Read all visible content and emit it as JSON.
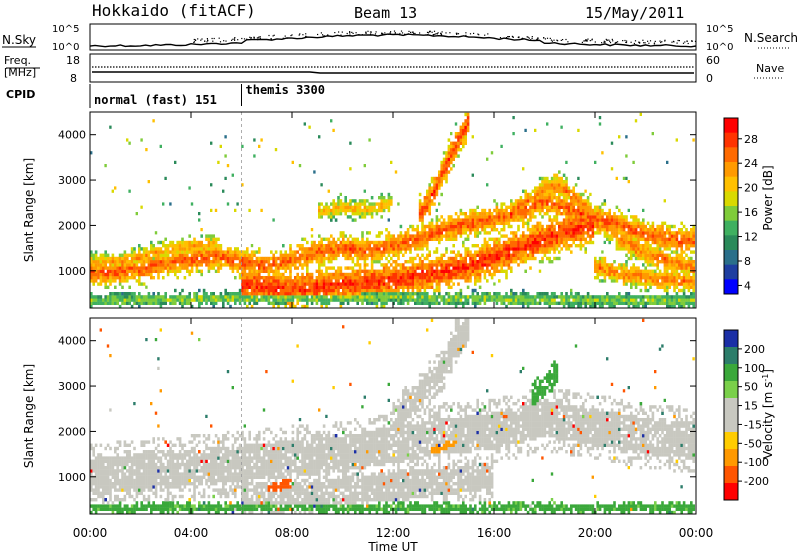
{
  "header": {
    "station": "Hokkaido (fitACF)",
    "beam": "Beam 13",
    "date": "15/May/2011"
  },
  "top_panels": {
    "nsky_label": "N.Sky",
    "nsearch_label": "N.Search",
    "nsky_ticks": [
      "10^5",
      "10^0"
    ],
    "nsearch_ticks": [
      "10^5",
      "10^0"
    ],
    "freq_label_1": "Freq.",
    "freq_label_2": "[MHz]",
    "freq_ticks": [
      "18",
      "8"
    ],
    "nave_label": "Nave",
    "nave_ticks": [
      "60",
      "0"
    ],
    "cpid_label": "CPID",
    "cpid_modes": [
      {
        "name": "normal (fast) 151",
        "start_hour": 0
      },
      {
        "name": "themis 3300",
        "start_hour": 6
      }
    ]
  },
  "power_scale": {
    "label": "Power [dB]",
    "ticks": [
      "28",
      "24",
      "20",
      "16",
      "12",
      "8",
      "4"
    ],
    "colors": [
      "#ff0000",
      "#ff3300",
      "#ff6a00",
      "#ff9a00",
      "#ffc000",
      "#d9d900",
      "#7fcc3a",
      "#3fb060",
      "#2a8a5a",
      "#2a6f8a",
      "#1e3ea0",
      "#0000ff"
    ]
  },
  "velocity_scale": {
    "label_main": "Velocity [m s",
    "label_sup": "-1",
    "label_end": "]",
    "ticks": [
      "200",
      "100",
      "50",
      "15",
      "-15",
      "-50",
      "-100",
      "-200"
    ],
    "colors": [
      "#1b2fa6",
      "#2c7d6a",
      "#3aa83a",
      "#7ad04a",
      "#c8c8c0",
      "#c8c8c0",
      "#ffcc00",
      "#ff9900",
      "#ff5500",
      "#ff0000"
    ]
  },
  "chart_data": {
    "type": "heatmap",
    "xlabel": "Time UT",
    "ylabel": "Slant Range [km]",
    "x_ticks": [
      "00:00",
      "04:00",
      "08:00",
      "12:00",
      "16:00",
      "20:00",
      "00:00"
    ],
    "y_ticks": [
      "1000",
      "2000",
      "3000",
      "4000"
    ],
    "xlim": [
      0,
      24
    ],
    "ylim": [
      180,
      4500
    ],
    "power_range_db": [
      0,
      30
    ],
    "velocity_range": [
      -250,
      250
    ],
    "power_bands": [
      {
        "points": [
          [
            0,
            950
          ],
          [
            1,
            980
          ],
          [
            2,
            1050
          ],
          [
            3,
            1150
          ],
          [
            4,
            1250
          ],
          [
            5,
            1320
          ],
          [
            6,
            1200
          ],
          [
            7,
            1100
          ],
          [
            8,
            1250
          ],
          [
            9,
            1400
          ],
          [
            10,
            1500
          ],
          [
            11,
            1450
          ],
          [
            12,
            1550
          ],
          [
            13,
            1700
          ],
          [
            14,
            1900
          ],
          [
            15,
            2050
          ],
          [
            16,
            2150
          ],
          [
            17,
            2300
          ],
          [
            18,
            2550
          ],
          [
            19,
            2350
          ],
          [
            20,
            2150
          ],
          [
            21,
            2000
          ],
          [
            22,
            1800
          ],
          [
            23,
            1700
          ],
          [
            24,
            1650
          ]
        ],
        "width": 180,
        "db": 26
      },
      {
        "points": [
          [
            0,
            1150
          ],
          [
            1,
            1200
          ],
          [
            2,
            1300
          ],
          [
            3,
            1450
          ],
          [
            4,
            1550
          ],
          [
            5,
            1600
          ]
        ],
        "width": 120,
        "db": 22
      },
      {
        "points": [
          [
            6,
            700
          ],
          [
            7,
            650
          ],
          [
            8,
            600
          ],
          [
            9,
            650
          ],
          [
            10,
            700
          ],
          [
            11,
            750
          ],
          [
            12,
            800
          ],
          [
            13,
            900
          ],
          [
            14,
            1000
          ],
          [
            15,
            1100
          ],
          [
            16,
            1300
          ],
          [
            17,
            1500
          ],
          [
            18,
            1700
          ],
          [
            19,
            1900
          ],
          [
            20,
            2000
          ]
        ],
        "width": 260,
        "db": 28
      },
      {
        "points": [
          [
            13,
            2200
          ],
          [
            13.5,
            2600
          ],
          [
            14,
            3200
          ],
          [
            14.5,
            3800
          ],
          [
            15,
            4300
          ]
        ],
        "width": 200,
        "db": 27
      },
      {
        "points": [
          [
            16,
            2100
          ],
          [
            17,
            2400
          ],
          [
            18,
            2800
          ],
          [
            18.5,
            2900
          ],
          [
            19,
            2700
          ],
          [
            20,
            2200
          ],
          [
            21,
            1700
          ],
          [
            22,
            1400
          ],
          [
            23,
            1200
          ],
          [
            24,
            1050
          ]
        ],
        "width": 150,
        "db": 24
      },
      {
        "points": [
          [
            9,
            2300
          ],
          [
            10,
            2400
          ],
          [
            11,
            2350
          ],
          [
            12,
            2500
          ]
        ],
        "width": 120,
        "db": 20
      },
      {
        "points": [
          [
            20,
            1100
          ],
          [
            21,
            950
          ],
          [
            22,
            850
          ],
          [
            23,
            800
          ],
          [
            24,
            750
          ]
        ],
        "width": 140,
        "db": 24
      },
      {
        "points": [
          [
            0,
            350
          ],
          [
            4,
            380
          ],
          [
            8,
            400
          ],
          [
            12,
            420
          ],
          [
            16,
            380
          ],
          [
            20,
            350
          ],
          [
            24,
            340
          ]
        ],
        "width": 90,
        "db": 14
      }
    ],
    "velocity_regions": [
      {
        "points": [
          [
            0,
            1000
          ],
          [
            2,
            1100
          ],
          [
            4,
            1200
          ],
          [
            6,
            1300
          ],
          [
            8,
            1400
          ],
          [
            10,
            1500
          ],
          [
            12,
            1700
          ],
          [
            14,
            1900
          ],
          [
            16,
            2000
          ],
          [
            18,
            2300
          ],
          [
            20,
            2100
          ],
          [
            22,
            1900
          ],
          [
            24,
            1800
          ]
        ],
        "width": 400,
        "v": 0
      },
      {
        "points": [
          [
            6,
            600
          ],
          [
            8,
            600
          ],
          [
            10,
            700
          ],
          [
            12,
            800
          ],
          [
            14,
            900
          ],
          [
            16,
            1000
          ]
        ],
        "width": 300,
        "v": 0
      },
      {
        "points": [
          [
            12,
            2200
          ],
          [
            13,
            2800
          ],
          [
            14,
            3400
          ],
          [
            14.5,
            4000
          ],
          [
            15,
            4300
          ]
        ],
        "width": 260,
        "v": 0
      },
      {
        "points": [
          [
            17.5,
            2700
          ],
          [
            18,
            3000
          ],
          [
            18.5,
            3300
          ]
        ],
        "width": 200,
        "v": 60
      },
      {
        "points": [
          [
            7,
            700
          ],
          [
            7.5,
            750
          ],
          [
            8,
            800
          ]
        ],
        "width": 150,
        "v": -120
      },
      {
        "points": [
          [
            13.5,
            1600
          ],
          [
            14,
            1700
          ],
          [
            14.5,
            1800
          ]
        ],
        "width": 150,
        "v": -70
      },
      {
        "points": [
          [
            0,
            300
          ],
          [
            6,
            320
          ],
          [
            12,
            340
          ],
          [
            18,
            300
          ],
          [
            24,
            320
          ]
        ],
        "width": 80,
        "v": 40
      }
    ]
  }
}
